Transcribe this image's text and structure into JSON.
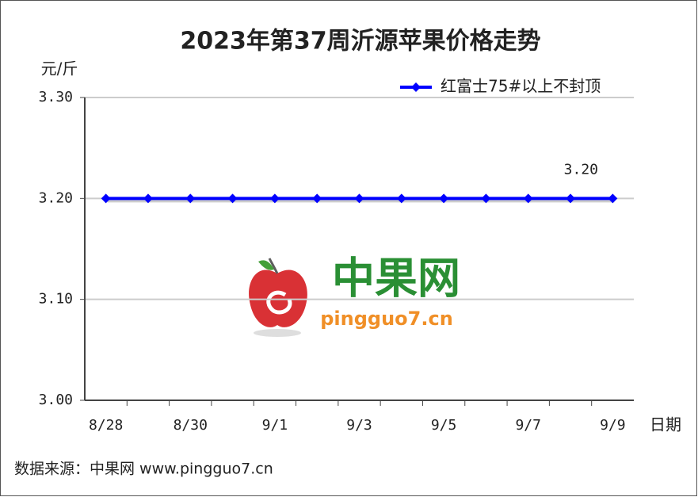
{
  "chart_data": {
    "type": "line",
    "title": "2023年第37周沂源苹果价格走势",
    "y_label": "元/斤",
    "x_label": "日期",
    "categories": [
      "8/28",
      null,
      "8/30",
      null,
      "9/1",
      null,
      "9/3",
      null,
      "9/5",
      null,
      "9/7",
      null,
      "9/9"
    ],
    "series": [
      {
        "name": "红富士75#以上不封顶",
        "color": "#0000ff",
        "values": [
          3.2,
          3.2,
          3.2,
          3.2,
          3.2,
          3.2,
          3.2,
          3.2,
          3.2,
          3.2,
          3.2,
          3.2,
          3.2
        ],
        "value_labels": [
          null,
          null,
          null,
          null,
          null,
          null,
          null,
          null,
          null,
          null,
          null,
          null,
          "3.20"
        ]
      }
    ],
    "ylim": [
      3.0,
      3.3
    ],
    "yticks": [
      {
        "value": 3.0,
        "label": "3.00"
      },
      {
        "value": 3.1,
        "label": "3.10"
      },
      {
        "value": 3.2,
        "label": "3.20"
      },
      {
        "value": 3.3,
        "label": "3.30"
      }
    ],
    "grid": true,
    "legend": "top-right",
    "watermark": {
      "name": "中果网",
      "site": "pingguo7.cn"
    },
    "source": "数据来源：中果网 www.pingguo7.cn"
  }
}
